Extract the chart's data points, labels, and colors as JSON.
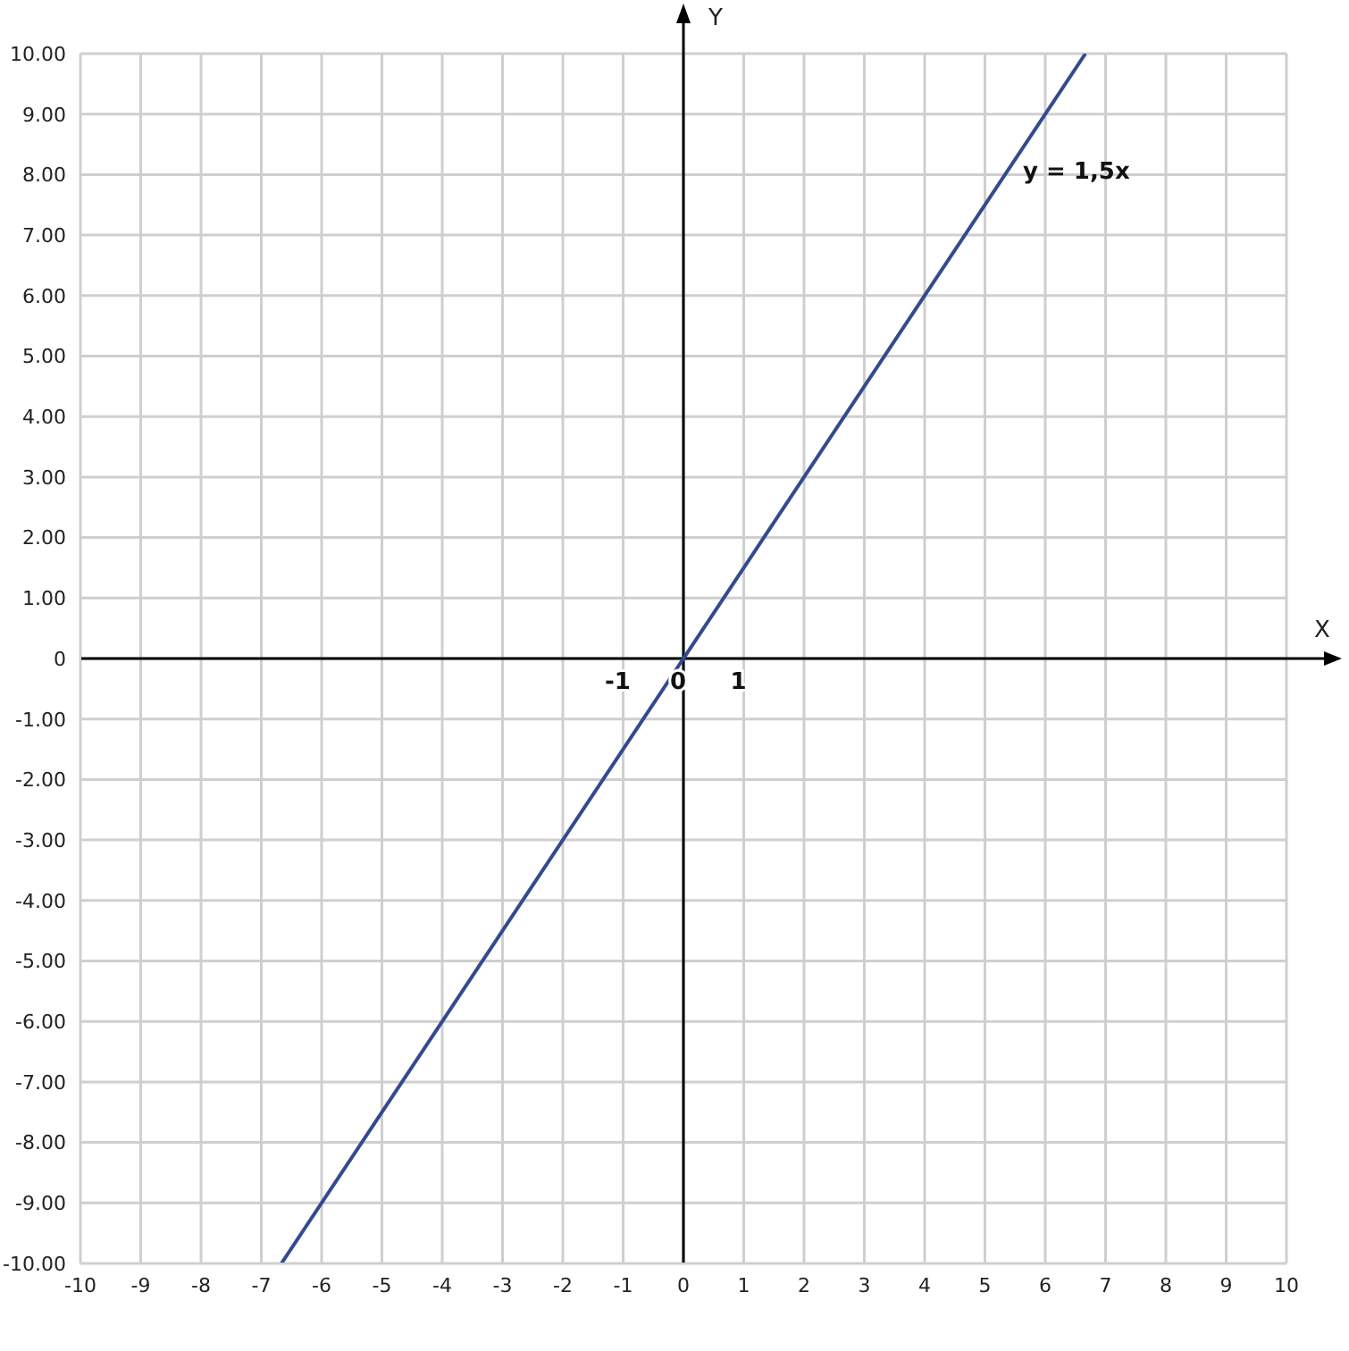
{
  "chart_data": {
    "type": "line",
    "xlabel": "X",
    "ylabel": "Y",
    "x": [
      -6.667,
      6.667
    ],
    "series": [
      {
        "name": "y = 1,5x",
        "color": "#34498f",
        "values": [
          -10,
          10
        ]
      }
    ],
    "xlim": [
      -10,
      10
    ],
    "xticks": [
      -10,
      -9,
      -8,
      -7,
      -6,
      -5,
      -4,
      -3,
      -2,
      -1,
      0,
      1,
      2,
      3,
      4,
      5,
      6,
      7,
      8,
      9,
      10
    ],
    "ylim": [
      -10,
      10
    ],
    "yticks": [
      {
        "value": -10,
        "label": "-10.00"
      },
      {
        "value": -9,
        "label": "-9.00"
      },
      {
        "value": -8,
        "label": "-8.00"
      },
      {
        "value": -7,
        "label": "-7.00"
      },
      {
        "value": -6,
        "label": "-6.00"
      },
      {
        "value": -5,
        "label": "-5.00"
      },
      {
        "value": -4,
        "label": "-4.00"
      },
      {
        "value": -3,
        "label": "-3.00"
      },
      {
        "value": -2,
        "label": "-2.00"
      },
      {
        "value": -1,
        "label": "-1.00"
      },
      0,
      {
        "value": 1,
        "label": "1.00"
      },
      {
        "value": 2,
        "label": "2.00"
      },
      {
        "value": 3,
        "label": "3.00"
      },
      {
        "value": 4,
        "label": "4.00"
      },
      {
        "value": 5,
        "label": "5.00"
      },
      {
        "value": 6,
        "label": "6.00"
      },
      {
        "value": 7,
        "label": "7.00"
      },
      {
        "value": 8,
        "label": "8.00"
      },
      {
        "value": 9,
        "label": "9.00"
      },
      {
        "value": 10,
        "label": "10.00"
      }
    ],
    "grid": true,
    "legend": false,
    "marker": "none",
    "line_style": "solid",
    "annotations": [
      "-1",
      "0",
      "1"
    ]
  }
}
